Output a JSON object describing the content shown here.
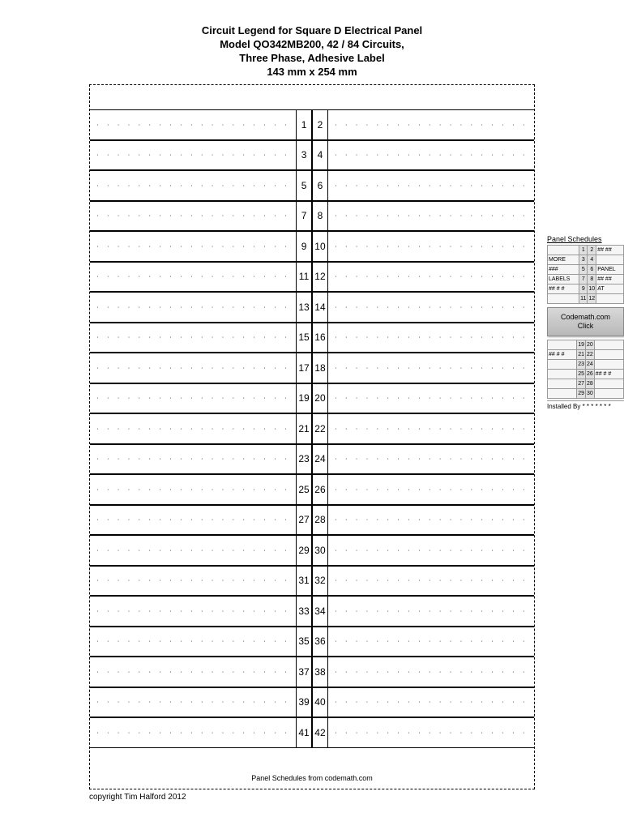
{
  "header": {
    "line1": "Circuit Legend for Square D Electrical Panel",
    "line2": "Model QO342MB200, 42 / 84 Circuits,",
    "line3": "Three Phase, Adhesive Label",
    "line4": "143 mm x 254 mm"
  },
  "circuits": {
    "count": 21,
    "left_nums": [
      1,
      3,
      5,
      7,
      9,
      11,
      13,
      15,
      17,
      19,
      21,
      23,
      25,
      27,
      29,
      31,
      33,
      35,
      37,
      39,
      41
    ],
    "right_nums": [
      2,
      4,
      6,
      8,
      10,
      12,
      14,
      16,
      18,
      20,
      22,
      24,
      26,
      28,
      30,
      32,
      34,
      36,
      38,
      40,
      42
    ],
    "dots": "·  ·  ·  ·  ·  ·  ·  ·  ·  ·  ·  ·  ·  ·  ·  ·  ·  ·  ·  ·  ·  ·"
  },
  "footer": "Panel Schedules from codemath.com",
  "copyright": "copyright Tim Halford 2012",
  "sidebar": {
    "title": "Panel Schedules",
    "rows_top": [
      {
        "l": "",
        "n1": "1",
        "n2": "2",
        "r": "## ##"
      },
      {
        "l": "MORE",
        "n1": "3",
        "n2": "4",
        "r": ""
      },
      {
        "l": "###",
        "n1": "5",
        "n2": "6",
        "r": "PANEL"
      },
      {
        "l": "LABELS",
        "n1": "7",
        "n2": "8",
        "r": "## ##"
      },
      {
        "l": "## # #",
        "n1": "9",
        "n2": "10",
        "r": "AT"
      },
      {
        "l": "",
        "n1": "11",
        "n2": "12",
        "r": ""
      }
    ],
    "button_line1": "Codemath.com",
    "button_line2": "Click",
    "rows_bottom": [
      {
        "l": "",
        "n1": "19",
        "n2": "20",
        "r": ""
      },
      {
        "l": "## # #",
        "n1": "21",
        "n2": "22",
        "r": ""
      },
      {
        "l": "",
        "n1": "23",
        "n2": "24",
        "r": ""
      },
      {
        "l": "",
        "n1": "25",
        "n2": "26",
        "r": "## # #"
      },
      {
        "l": "",
        "n1": "27",
        "n2": "28",
        "r": ""
      },
      {
        "l": "",
        "n1": "29",
        "n2": "30",
        "r": ""
      }
    ],
    "installed_by": "Installed By * * * * * * *"
  },
  "colors": {
    "background": "#ffffff",
    "border": "#000000",
    "mini_bg": "#f5f5f5",
    "mini_num_bg": "#e0e0e0"
  }
}
